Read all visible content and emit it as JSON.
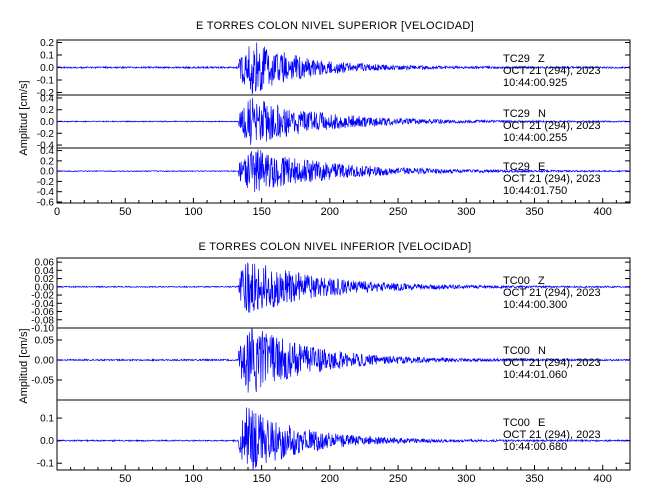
{
  "chart_data": [
    {
      "type": "line",
      "title": "E TORRES COLON NIVEL SUPERIOR [VELOCIDAD]",
      "ylabel": "Amplitud  [cm/s]",
      "xlabel": "",
      "xlim": [
        0,
        420
      ],
      "x_ticks": [
        "0",
        "50",
        "100",
        "150",
        "200",
        "250",
        "300",
        "350",
        "400"
      ],
      "grid": false,
      "panels": [
        {
          "station": "TC29",
          "component": "Z",
          "date": "OCT 21 (294), 2023",
          "time": "10:44:00.925",
          "ylim": [
            -0.22,
            0.22
          ],
          "y_ticks": [
            "0.2",
            "0.1",
            "0.0",
            "-0.1",
            "-0.2"
          ],
          "y_tick_values": [
            0.2,
            0.1,
            0.0,
            -0.1,
            -0.2
          ],
          "peak_abs": 0.22,
          "onset_s": 133,
          "peak_s": 142,
          "decay_s": 38,
          "noise_frac": 0.03,
          "color": "#0000ff"
        },
        {
          "station": "TC29",
          "component": "N",
          "date": "OCT 21 (294), 2023",
          "time": "10:44:00.255",
          "ylim": [
            -0.45,
            0.45
          ],
          "y_ticks": [
            "0.4",
            "0.2",
            "0.0",
            "-0.2",
            "-0.4"
          ],
          "y_tick_values": [
            0.4,
            0.2,
            0.0,
            -0.2,
            -0.4
          ],
          "peak_abs": 0.42,
          "onset_s": 133,
          "peak_s": 142,
          "decay_s": 50,
          "noise_frac": 0.02,
          "color": "#0000ff"
        },
        {
          "station": "TC29",
          "component": "E",
          "date": "OCT 21 (294), 2023",
          "time": "10:44:01.750",
          "ylim": [
            -0.62,
            0.45
          ],
          "y_ticks": [
            "0.4",
            "0.2",
            "0.0",
            "-0.2",
            "-0.4",
            "-0.6"
          ],
          "y_tick_values": [
            0.4,
            0.2,
            0.0,
            -0.2,
            -0.4,
            -0.6
          ],
          "peak_abs": 0.45,
          "onset_s": 133,
          "peak_s": 143,
          "decay_s": 55,
          "noise_frac": 0.02,
          "color": "#0000ff"
        }
      ]
    },
    {
      "type": "line",
      "title": "E TORRES COLON NIVEL INFERIOR [VELOCIDAD]",
      "ylabel": "Amplitud  [cm/s]",
      "xlabel": "",
      "xlim": [
        0,
        420
      ],
      "x_ticks": [
        "50",
        "100",
        "150",
        "200",
        "250",
        "300",
        "350",
        "400"
      ],
      "grid": false,
      "panels": [
        {
          "station": "TC00",
          "component": "Z",
          "date": "OCT 21 (294), 2023",
          "time": "10:44:00.300",
          "ylim": [
            -0.1,
            0.07
          ],
          "y_ticks": [
            "0.06",
            "0.04",
            "0.02",
            "0.00",
            "-0.02",
            "-0.04",
            "-0.06",
            "-0.08",
            "-0.10"
          ],
          "y_tick_values": [
            0.06,
            0.04,
            0.02,
            0.0,
            -0.02,
            -0.04,
            -0.06,
            -0.08,
            -0.1
          ],
          "peak_abs": 0.07,
          "onset_s": 133,
          "peak_s": 140,
          "decay_s": 50,
          "noise_frac": 0.02,
          "color": "#0000ff"
        },
        {
          "station": "TC00",
          "component": "N",
          "date": "OCT 21 (294), 2023",
          "time": "10:44:01.060",
          "ylim": [
            -0.1,
            0.08
          ],
          "y_ticks": [
            "0.05",
            "0.00",
            "-0.05"
          ],
          "y_tick_values": [
            0.05,
            0.0,
            -0.05
          ],
          "peak_abs": 0.09,
          "onset_s": 133,
          "peak_s": 141,
          "decay_s": 45,
          "noise_frac": 0.02,
          "color": "#0000ff"
        },
        {
          "station": "TC00",
          "component": "E",
          "date": "OCT 21 (294), 2023",
          "time": "10:44:00.680",
          "ylim": [
            -0.13,
            0.18
          ],
          "y_ticks": [
            "0.1",
            "0.0",
            "-0.1"
          ],
          "y_tick_values": [
            0.1,
            0.0,
            -0.1
          ],
          "peak_abs": 0.15,
          "onset_s": 133,
          "peak_s": 139,
          "decay_s": 40,
          "noise_frac": 0.02,
          "color": "#0000ff"
        }
      ]
    }
  ]
}
